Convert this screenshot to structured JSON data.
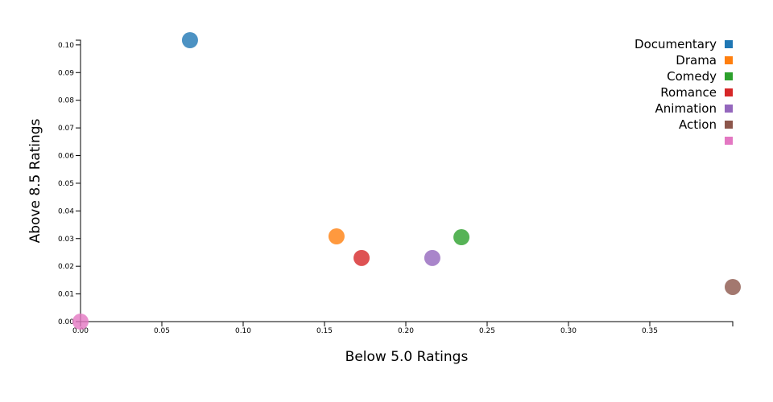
{
  "chart_data": {
    "type": "scatter",
    "x_label": "Below 5.0 Ratings",
    "y_label": "Above 8.5 Ratings",
    "xlim": [
      0,
      0.401
    ],
    "ylim": [
      0,
      0.1017
    ],
    "xticks": [
      {
        "value": 0,
        "label": "0.00"
      },
      0.05,
      {
        "value": 0.1,
        "label": "0.10"
      },
      0.15,
      {
        "value": 0.2,
        "label": "0.20"
      },
      0.25,
      {
        "value": 0.3,
        "label": "0.30"
      },
      0.35
    ],
    "yticks": [
      {
        "value": 0,
        "label": "0.00"
      },
      0.01,
      0.02,
      0.03,
      0.04,
      0.05,
      0.06,
      0.07,
      0.08,
      0.09,
      {
        "value": 0.1,
        "label": "0.10"
      }
    ],
    "series": [
      {
        "name": "Documentary",
        "color": "#1f77b4",
        "x": [
          0.0673
        ],
        "values": [
          0.1017
        ]
      },
      {
        "name": "Drama",
        "color": "#ff7f0e",
        "x": [
          0.1574
        ],
        "values": [
          0.0308
        ]
      },
      {
        "name": "Comedy",
        "color": "#2ca02c",
        "x": [
          0.2342
        ],
        "values": [
          0.0305
        ]
      },
      {
        "name": "Romance",
        "color": "#d62728",
        "x": [
          0.1728
        ],
        "values": [
          0.023
        ]
      },
      {
        "name": "Animation",
        "color": "#9467bd",
        "x": [
          0.2163
        ],
        "values": [
          0.023
        ]
      },
      {
        "name": "Action",
        "color": "#8c564b",
        "x": [
          0.401
        ],
        "values": [
          0.0125
        ]
      },
      {
        "name": null,
        "color": "#e377c2",
        "x": [
          0
        ],
        "values": [
          0
        ]
      }
    ]
  }
}
